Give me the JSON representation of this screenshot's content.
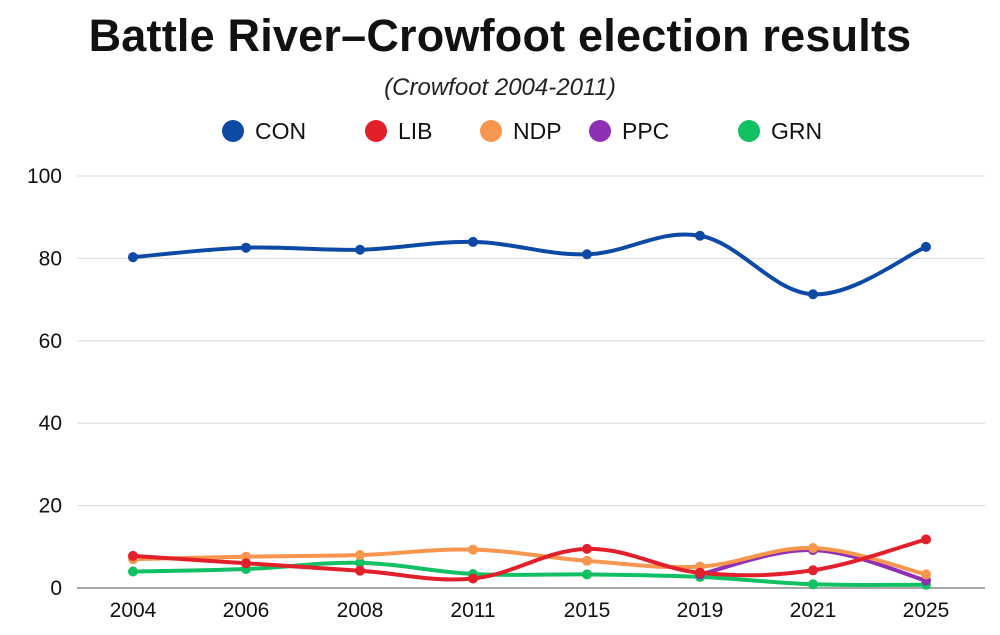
{
  "chart_data": {
    "type": "line",
    "title": "Battle River–Crowfoot election results",
    "subtitle": "(Crowfoot 2004-2011)",
    "xlabel": "",
    "ylabel": "",
    "categories": [
      "2004",
      "2006",
      "2008",
      "2011",
      "2015",
      "2019",
      "2021",
      "2025"
    ],
    "ylim": [
      0,
      100
    ],
    "yticks": [
      "0",
      "20",
      "40",
      "60",
      "80",
      "100"
    ],
    "legend_position": "top",
    "grid": true,
    "series": [
      {
        "name": "CON",
        "color": "#0d4aa6",
        "values": [
          80.3,
          82.6,
          82.1,
          84.0,
          81.0,
          85.5,
          71.3,
          82.8
        ]
      },
      {
        "name": "LIB",
        "color": "#e2202c",
        "values": [
          7.8,
          6.0,
          4.2,
          2.3,
          9.5,
          3.7,
          4.3,
          11.8
        ]
      },
      {
        "name": "NDP",
        "color": "#f7964f",
        "values": [
          7.0,
          7.6,
          8.0,
          9.3,
          6.6,
          5.2,
          9.7,
          3.3
        ]
      },
      {
        "name": "PPC",
        "color": "#8e2fb4",
        "values": [
          null,
          null,
          null,
          null,
          null,
          3.3,
          9.2,
          1.8
        ]
      },
      {
        "name": "GRN",
        "color": "#12c064",
        "values": [
          4.0,
          4.6,
          6.1,
          3.4,
          3.3,
          2.7,
          0.9,
          0.8
        ]
      }
    ]
  }
}
